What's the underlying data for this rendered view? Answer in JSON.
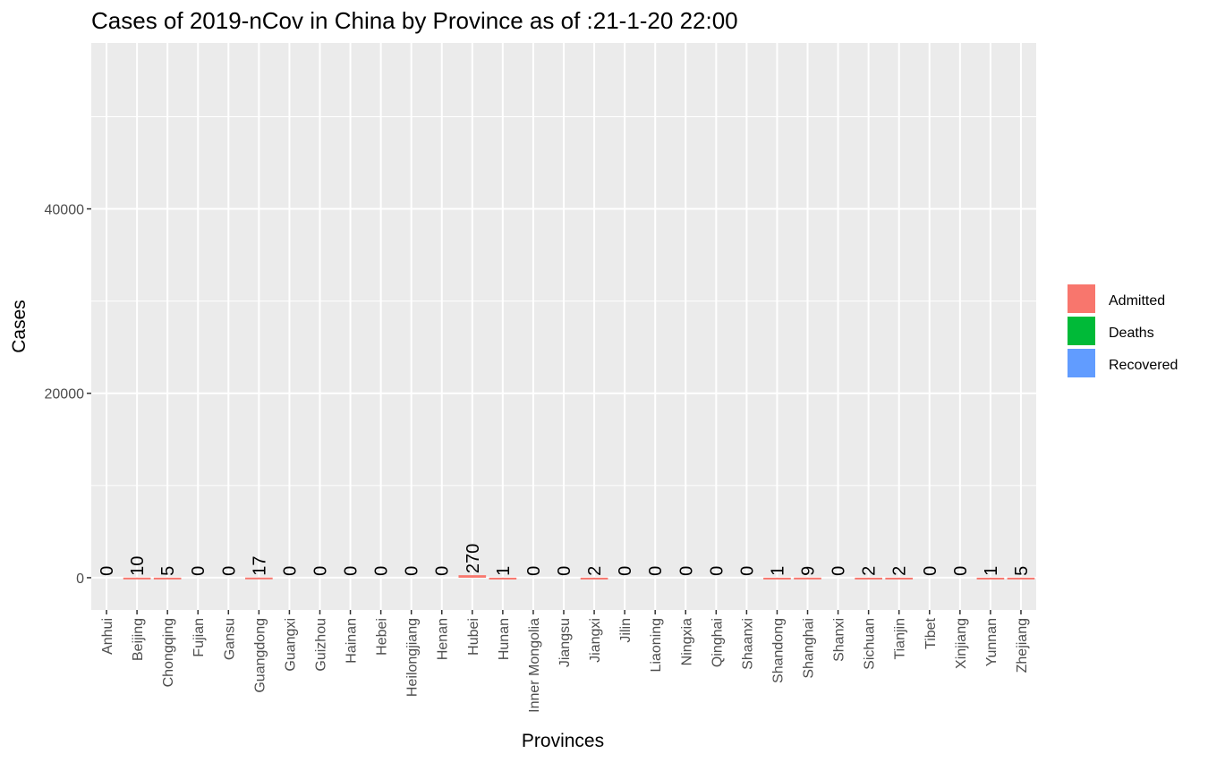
{
  "chart_data": {
    "type": "bar",
    "title": "Cases of 2019-nCov in China by Province as of :21-1-20 22:00",
    "xlabel": "Provinces",
    "ylabel": "Cases",
    "ylim": [
      -3500,
      58000
    ],
    "yticks": [
      0,
      20000,
      40000
    ],
    "grid": true,
    "legend_position": "right",
    "categories": [
      "Anhui",
      "Beijing",
      "Chongqing",
      "Fujian",
      "Gansu",
      "Guangdong",
      "Guangxi",
      "Guizhou",
      "Hainan",
      "Hebei",
      "Heilongjiang",
      "Henan",
      "Hubei",
      "Hunan",
      "Inner Mongolia",
      "Jiangsu",
      "Jiangxi",
      "Jilin",
      "Liaoning",
      "Ningxia",
      "Qinghai",
      "Shaanxi",
      "Shandong",
      "Shanghai",
      "Shanxi",
      "Sichuan",
      "Tianjin",
      "Tibet",
      "Xinjiang",
      "Yunnan",
      "Zhejiang"
    ],
    "series": [
      {
        "name": "Admitted",
        "color": "#F8766D",
        "values": [
          0,
          10,
          5,
          0,
          0,
          17,
          0,
          0,
          0,
          0,
          0,
          0,
          270,
          1,
          0,
          0,
          2,
          0,
          0,
          0,
          0,
          0,
          1,
          9,
          0,
          2,
          2,
          0,
          0,
          1,
          5
        ]
      },
      {
        "name": "Deaths",
        "color": "#00BA38",
        "values": [
          0,
          0,
          0,
          0,
          0,
          0,
          0,
          0,
          0,
          0,
          0,
          0,
          0,
          0,
          0,
          0,
          0,
          0,
          0,
          0,
          0,
          0,
          0,
          0,
          0,
          0,
          0,
          0,
          0,
          0,
          0
        ]
      },
      {
        "name": "Recovered",
        "color": "#619CFF",
        "values": [
          0,
          0,
          0,
          0,
          0,
          0,
          0,
          0,
          0,
          0,
          0,
          0,
          0,
          0,
          0,
          0,
          0,
          0,
          0,
          0,
          0,
          0,
          0,
          0,
          0,
          0,
          0,
          0,
          0,
          0,
          0
        ]
      }
    ],
    "data_labels": [
      "0",
      "10",
      "5",
      "0",
      "0",
      "17",
      "0",
      "0",
      "0",
      "0",
      "0",
      "0",
      "270",
      "1",
      "0",
      "0",
      "2",
      "0",
      "0",
      "0",
      "0",
      "0",
      "1",
      "9",
      "0",
      "2",
      "2",
      "0",
      "0",
      "1",
      "5"
    ]
  }
}
